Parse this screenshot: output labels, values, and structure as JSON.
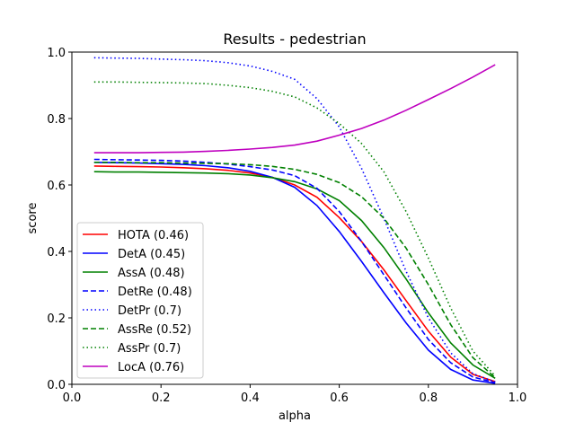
{
  "chart_data": {
    "type": "line",
    "title": "Results - pedestrian",
    "xlabel": "alpha",
    "ylabel": "score",
    "xlim": [
      0.0,
      1.0
    ],
    "ylim": [
      0.0,
      1.0
    ],
    "xticks": [
      "0.0",
      "0.2",
      "0.4",
      "0.6",
      "0.8",
      "1.0"
    ],
    "yticks": [
      "0.0",
      "0.2",
      "0.4",
      "0.6",
      "0.8",
      "1.0"
    ],
    "grid": false,
    "legend_position": "lower-left",
    "x": [
      0.05,
      0.1,
      0.15,
      0.2,
      0.25,
      0.3,
      0.35,
      0.4,
      0.45,
      0.5,
      0.55,
      0.6,
      0.65,
      0.7,
      0.75,
      0.8,
      0.85,
      0.9,
      0.95
    ],
    "series": [
      {
        "name": "HOTA (0.46)",
        "color": "#ff0000",
        "dash": "solid",
        "values": [
          0.657,
          0.656,
          0.655,
          0.654,
          0.652,
          0.649,
          0.644,
          0.636,
          0.623,
          0.6,
          0.563,
          0.502,
          0.43,
          0.345,
          0.252,
          0.16,
          0.082,
          0.03,
          0.008
        ]
      },
      {
        "name": "DetA (0.45)",
        "color": "#0000ff",
        "dash": "solid",
        "values": [
          0.668,
          0.667,
          0.666,
          0.664,
          0.662,
          0.658,
          0.652,
          0.641,
          0.623,
          0.593,
          0.538,
          0.46,
          0.37,
          0.276,
          0.185,
          0.103,
          0.045,
          0.013,
          0.003
        ]
      },
      {
        "name": "AssA (0.48)",
        "color": "#008000",
        "dash": "solid",
        "values": [
          0.64,
          0.639,
          0.639,
          0.638,
          0.637,
          0.636,
          0.634,
          0.63,
          0.622,
          0.61,
          0.588,
          0.553,
          0.493,
          0.412,
          0.317,
          0.215,
          0.125,
          0.058,
          0.018
        ]
      },
      {
        "name": "DetRe (0.48)",
        "color": "#0000ff",
        "dash": "dashed",
        "values": [
          0.677,
          0.676,
          0.675,
          0.674,
          0.672,
          0.668,
          0.663,
          0.655,
          0.645,
          0.628,
          0.59,
          0.52,
          0.43,
          0.33,
          0.23,
          0.135,
          0.065,
          0.022,
          0.005
        ]
      },
      {
        "name": "DetPr (0.7)",
        "color": "#0000ff",
        "dash": "dotted",
        "values": [
          0.983,
          0.982,
          0.981,
          0.979,
          0.977,
          0.974,
          0.968,
          0.958,
          0.942,
          0.918,
          0.86,
          0.775,
          0.65,
          0.5,
          0.34,
          0.2,
          0.095,
          0.032,
          0.007
        ]
      },
      {
        "name": "AssRe (0.52)",
        "color": "#008000",
        "dash": "dashed",
        "values": [
          0.668,
          0.668,
          0.667,
          0.667,
          0.666,
          0.665,
          0.664,
          0.661,
          0.656,
          0.647,
          0.632,
          0.607,
          0.565,
          0.5,
          0.41,
          0.3,
          0.18,
          0.08,
          0.02
        ]
      },
      {
        "name": "AssPr (0.7)",
        "color": "#008000",
        "dash": "dotted",
        "values": [
          0.91,
          0.91,
          0.909,
          0.908,
          0.907,
          0.905,
          0.9,
          0.893,
          0.882,
          0.865,
          0.832,
          0.785,
          0.725,
          0.64,
          0.52,
          0.38,
          0.23,
          0.1,
          0.025
        ]
      },
      {
        "name": "LocA (0.76)",
        "color": "#bf00bf",
        "dash": "solid",
        "values": [
          0.697,
          0.697,
          0.697,
          0.698,
          0.699,
          0.701,
          0.704,
          0.708,
          0.713,
          0.72,
          0.732,
          0.75,
          0.77,
          0.795,
          0.825,
          0.857,
          0.89,
          0.925,
          0.962
        ]
      }
    ]
  }
}
